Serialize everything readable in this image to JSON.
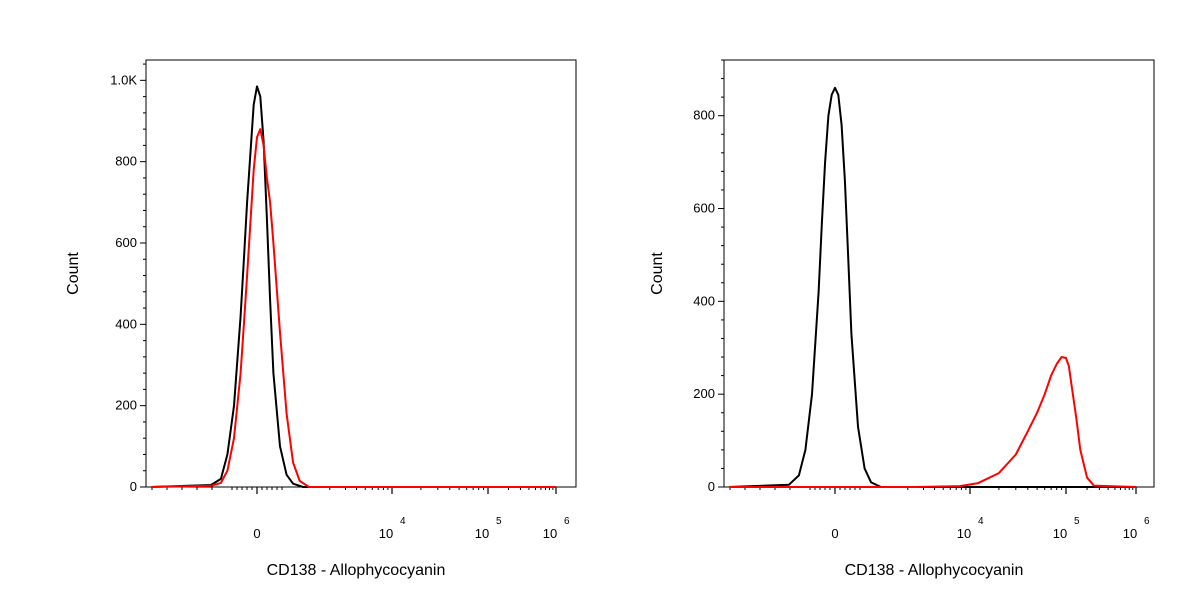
{
  "colors": {
    "control": "#000000",
    "sample": "#ff0000",
    "axis": "#000000"
  },
  "chart_data": [
    {
      "type": "line",
      "panel": "left",
      "xlabel": "CD138 - Allophycocyanin",
      "ylabel": "Count",
      "ylim": [
        0,
        1050
      ],
      "yticks": [
        {
          "value": 0,
          "label": "0"
        },
        {
          "value": 200,
          "label": "200"
        },
        {
          "value": 400,
          "label": "400"
        },
        {
          "value": 600,
          "label": "600"
        },
        {
          "value": 800,
          "label": "800"
        },
        {
          "value": 1000,
          "label": "1.0K"
        }
      ],
      "xticks": [
        {
          "value": 0,
          "label": "0"
        },
        {
          "value": 10000,
          "label": "10",
          "exp": "4"
        },
        {
          "value": 100000,
          "label": "10",
          "exp": "5"
        },
        {
          "value": 1000000,
          "label": "10",
          "exp": "6"
        }
      ],
      "series": [
        {
          "color_key": "control",
          "x": [
            -3000,
            -1400,
            -1100,
            -900,
            -700,
            -500,
            -400,
            -300,
            -200,
            -100,
            0,
            100,
            200,
            300,
            400,
            500,
            700,
            900,
            1100,
            1400,
            3000
          ],
          "y": [
            0,
            5,
            20,
            80,
            200,
            420,
            560,
            700,
            820,
            940,
            985,
            960,
            850,
            660,
            460,
            280,
            100,
            30,
            8,
            0,
            0
          ]
        },
        {
          "color_key": "sample",
          "x": [
            -3000,
            -1400,
            -1100,
            -900,
            -700,
            -500,
            -400,
            -300,
            -200,
            -100,
            0,
            100,
            200,
            300,
            400,
            500,
            700,
            900,
            1100,
            1300,
            1600,
            3000,
            100000,
            1000000
          ],
          "y": [
            0,
            3,
            10,
            40,
            120,
            280,
            400,
            520,
            650,
            780,
            860,
            880,
            840,
            760,
            700,
            600,
            380,
            180,
            60,
            15,
            0,
            0,
            0,
            0
          ]
        }
      ]
    },
    {
      "type": "line",
      "panel": "right",
      "xlabel": "CD138 - Allophycocyanin",
      "ylabel": "Count",
      "ylim": [
        0,
        920
      ],
      "yticks": [
        {
          "value": 0,
          "label": "0"
        },
        {
          "value": 200,
          "label": "200"
        },
        {
          "value": 400,
          "label": "400"
        },
        {
          "value": 600,
          "label": "600"
        },
        {
          "value": 800,
          "label": "800"
        }
      ],
      "xticks": [
        {
          "value": 0,
          "label": "0"
        },
        {
          "value": 10000,
          "label": "10",
          "exp": "4"
        },
        {
          "value": 100000,
          "label": "10",
          "exp": "5"
        },
        {
          "value": 1000000,
          "label": "10",
          "exp": "6"
        }
      ],
      "series": [
        {
          "color_key": "control",
          "x": [
            -3000,
            -1400,
            -1100,
            -900,
            -700,
            -500,
            -400,
            -300,
            -200,
            -100,
            0,
            100,
            200,
            300,
            400,
            500,
            700,
            900,
            1100,
            1400,
            3000,
            1000000
          ],
          "y": [
            0,
            5,
            25,
            80,
            200,
            420,
            570,
            700,
            800,
            845,
            860,
            845,
            780,
            660,
            500,
            330,
            130,
            40,
            10,
            0,
            0,
            0
          ]
        },
        {
          "color_key": "sample",
          "x": [
            -3000,
            3000,
            8000,
            12000,
            20000,
            30000,
            40000,
            50000,
            60000,
            70000,
            80000,
            90000,
            100000,
            110000,
            120000,
            140000,
            160000,
            200000,
            250000,
            1000000
          ],
          "y": [
            0,
            0,
            2,
            8,
            30,
            70,
            120,
            160,
            200,
            240,
            265,
            280,
            278,
            260,
            220,
            150,
            80,
            20,
            3,
            0
          ]
        }
      ]
    }
  ]
}
